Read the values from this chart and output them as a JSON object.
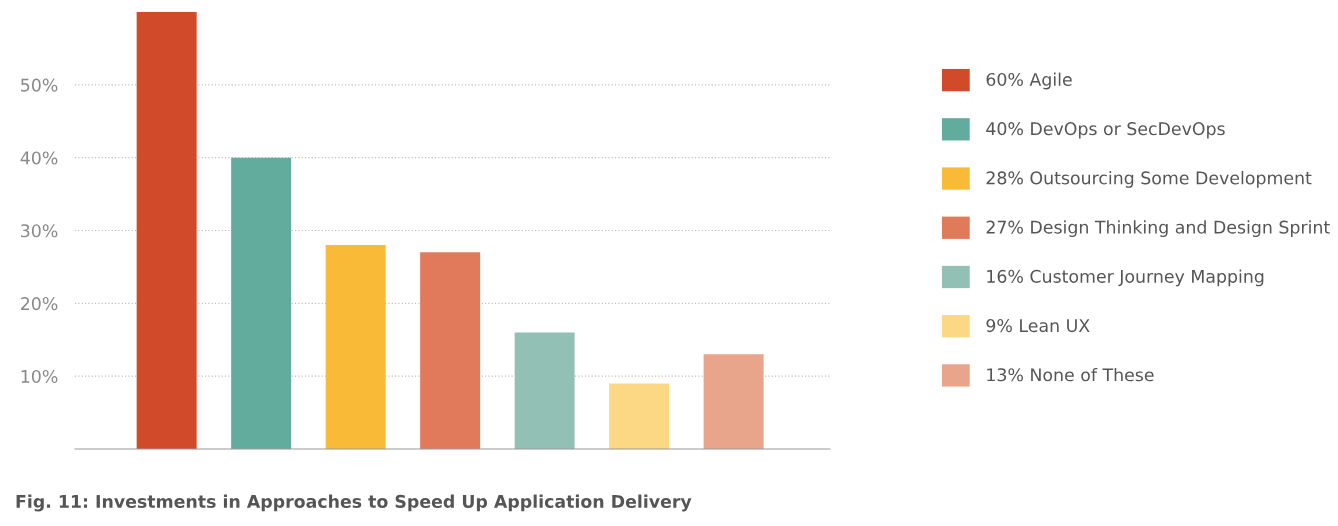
{
  "chart_data": {
    "type": "bar",
    "title": "Fig. 11: Investments in Approaches to Speed Up Application Delivery",
    "categories": [
      null,
      null,
      null,
      null,
      null,
      null,
      null
    ],
    "series": [
      {
        "name": "60% Agile",
        "color": "#d14b2b",
        "values": [
          60,
          null,
          null,
          null,
          null,
          null,
          null
        ]
      },
      {
        "name": "40% DevOps or SecDevOps",
        "color": "#62ac9e",
        "values": [
          null,
          40,
          null,
          null,
          null,
          null,
          null
        ]
      },
      {
        "name": "28% Outsourcing Some Development",
        "color": "#f9ba38",
        "values": [
          null,
          null,
          28,
          null,
          null,
          null,
          null
        ]
      },
      {
        "name": "27% Design Thinking and Design Sprint",
        "color": "#e07a5a",
        "values": [
          null,
          null,
          null,
          27,
          null,
          null,
          null
        ]
      },
      {
        "name": "16% Customer Journey Mapping",
        "color": "#92c0b4",
        "values": [
          null,
          null,
          null,
          null,
          16,
          null,
          null
        ]
      },
      {
        "name": "9% Lean UX",
        "color": "#fcd784",
        "values": [
          null,
          null,
          null,
          null,
          null,
          9,
          null
        ]
      },
      {
        "name": "13% None of These",
        "color": "#e9a58b",
        "values": [
          null,
          null,
          null,
          null,
          null,
          null,
          13
        ]
      }
    ],
    "ylim": [
      0,
      60
    ],
    "yticks": [
      {
        "value": 10,
        "label": "10%"
      },
      {
        "value": 20,
        "label": "20%"
      },
      {
        "value": 30,
        "label": "30%"
      },
      {
        "value": 40,
        "label": "40%"
      },
      {
        "value": 50,
        "label": "50%"
      }
    ],
    "grid": "y",
    "legend": "right",
    "tick_labels": "y"
  }
}
